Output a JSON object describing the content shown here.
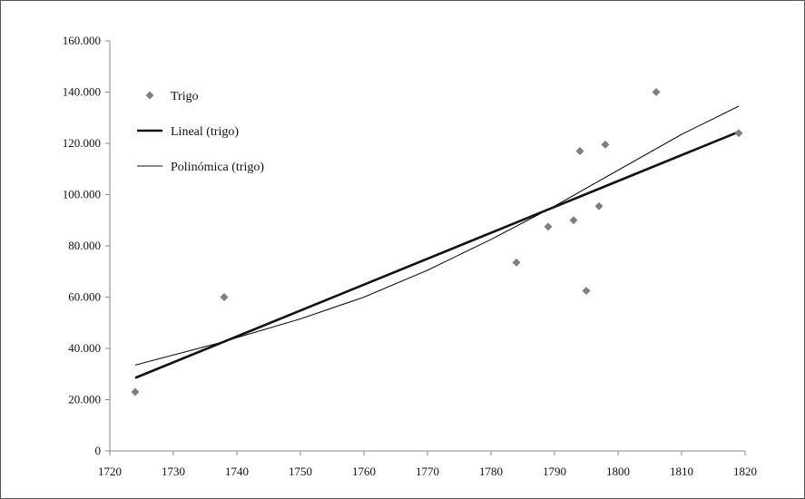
{
  "chart_data": {
    "type": "scatter",
    "title": "",
    "xlabel": "",
    "ylabel": "",
    "xlim": [
      1720,
      1820
    ],
    "ylim": [
      0,
      160000
    ],
    "x_ticks": [
      1720,
      1730,
      1740,
      1750,
      1760,
      1770,
      1780,
      1790,
      1800,
      1810,
      1820
    ],
    "x_tick_labels": [
      "1720",
      "1730",
      "1740",
      "1750",
      "1760",
      "1770",
      "1780",
      "1790",
      "1800",
      "1810",
      "1820"
    ],
    "y_ticks": [
      0,
      20000,
      40000,
      60000,
      80000,
      100000,
      120000,
      140000,
      160000
    ],
    "y_tick_labels": [
      "0",
      "20.000",
      "40.000",
      "60.000",
      "80.000",
      "100.000",
      "120.000",
      "140.000",
      "160.000"
    ],
    "grid": false,
    "legend_position": "top-left",
    "series": [
      {
        "name": "Trigo",
        "kind": "points",
        "marker": "diamond",
        "color": "#7f7f7f",
        "points": [
          [
            1724,
            23000
          ],
          [
            1738,
            60000
          ],
          [
            1784,
            73500
          ],
          [
            1789,
            87500
          ],
          [
            1793,
            90000
          ],
          [
            1794,
            117000
          ],
          [
            1795,
            62500
          ],
          [
            1797,
            95500
          ],
          [
            1798,
            119500
          ],
          [
            1806,
            140000
          ],
          [
            1819,
            124000
          ]
        ]
      },
      {
        "name": "Lineal (trigo)",
        "kind": "line",
        "color": "#111111",
        "points": [
          [
            1724,
            28500
          ],
          [
            1819,
            124500
          ]
        ]
      },
      {
        "name": "Polinómica (trigo)",
        "kind": "line",
        "color": "#111111",
        "points": [
          [
            1724,
            33500
          ],
          [
            1737,
            42000
          ],
          [
            1750,
            51500
          ],
          [
            1760,
            60000
          ],
          [
            1770,
            70500
          ],
          [
            1780,
            82500
          ],
          [
            1790,
            95500
          ],
          [
            1800,
            109500
          ],
          [
            1810,
            123500
          ],
          [
            1819,
            134500
          ]
        ]
      }
    ]
  }
}
